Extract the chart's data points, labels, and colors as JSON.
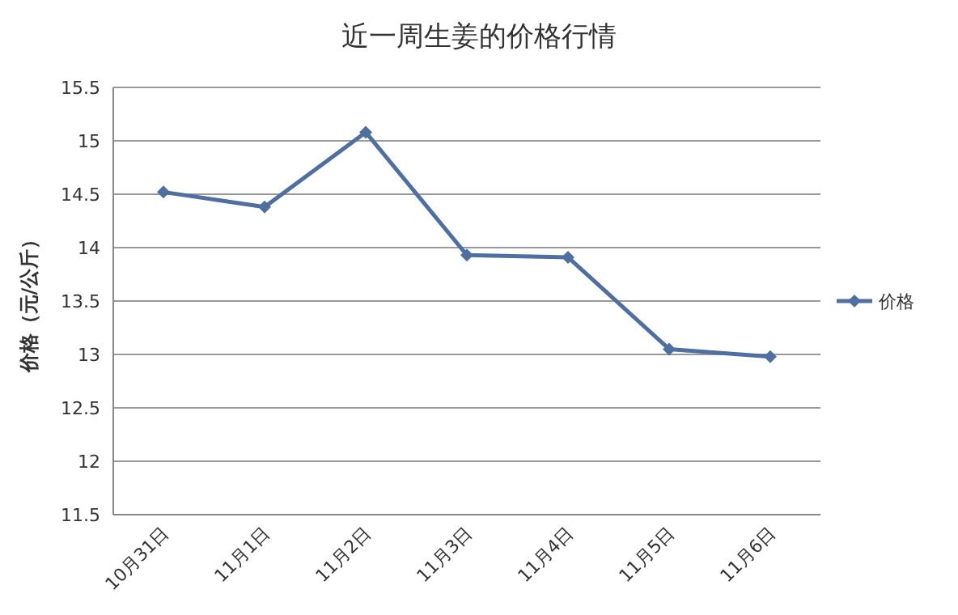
{
  "chart_data": {
    "type": "line",
    "title": "近一周生姜的价格行情",
    "ylabel": "价格（元/公斤）",
    "categories": [
      "10月31日",
      "11月1日",
      "11月2日",
      "11月3日",
      "11月4日",
      "11月5日",
      "11月6日"
    ],
    "series": [
      {
        "name": "价格",
        "color": "#4f6fa0",
        "values": [
          14.52,
          14.38,
          15.08,
          13.93,
          13.91,
          13.05,
          12.98
        ]
      }
    ],
    "ylim": [
      11.5,
      15.5
    ],
    "yticks": [
      11.5,
      12,
      12.5,
      13,
      13.5,
      14,
      14.5,
      15,
      15.5
    ],
    "grid": "y",
    "legend": "right",
    "marker": "diamond",
    "line_style": "solid"
  }
}
